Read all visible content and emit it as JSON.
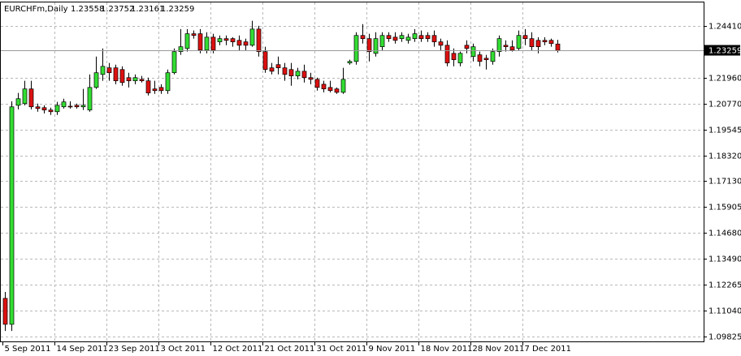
{
  "chart_data": {
    "type": "candlestick",
    "title": "EURCHFm,Daily",
    "up_color": "#33dd33",
    "down_color": "#dd1111",
    "grid": true,
    "ylim": [
      1.0956,
      1.2551
    ],
    "yticks": [
      1.09825,
      {
        "value": 1.1104,
        "label": "1.11040"
      },
      1.12265,
      {
        "value": 1.1349,
        "label": "1.13490"
      },
      {
        "value": 1.1468,
        "label": "1.14680"
      },
      1.15905,
      {
        "value": 1.1713,
        "label": "1.17130"
      },
      {
        "value": 1.1832,
        "label": "1.18320"
      },
      1.19545,
      {
        "value": 1.2077,
        "label": "1.20770"
      },
      {
        "value": 1.2196,
        "label": "1.21960"
      },
      {
        "value": 1.2441,
        "label": "1.24410"
      }
    ],
    "categories": [
      "5 Sep 2011",
      null,
      null,
      null,
      null,
      null,
      null,
      null,
      "14 Sep 2011",
      null,
      null,
      null,
      null,
      null,
      null,
      null,
      "23 Sep 2011",
      null,
      null,
      null,
      null,
      null,
      null,
      null,
      "3 Oct 2011",
      null,
      null,
      null,
      null,
      null,
      null,
      null,
      "12 Oct 2011",
      null,
      null,
      null,
      null,
      null,
      null,
      null,
      "21 Oct 2011",
      null,
      null,
      null,
      null,
      null,
      null,
      null,
      "31 Oct 2011",
      null,
      null,
      null,
      null,
      null,
      null,
      null,
      "9 Nov 2011",
      null,
      null,
      null,
      null,
      null,
      null,
      null,
      "18 Nov 2011",
      null,
      null,
      null,
      null,
      null,
      null,
      null,
      "28 Nov 2011",
      null,
      null,
      null,
      null,
      null,
      null,
      null,
      "7 Dec 2011",
      null,
      null,
      null,
      null,
      null
    ],
    "open": [
      1.1162,
      1.104,
      1.2068,
      1.2076,
      1.2145,
      1.2061,
      1.2057,
      1.2046,
      1.2038,
      1.2061,
      1.2064,
      1.2068,
      1.2061,
      1.2046,
      1.2152,
      1.2213,
      1.2244,
      1.2244,
      1.2236,
      1.2198,
      1.2183,
      1.219,
      1.2183,
      1.2145,
      1.2152,
      1.2137,
      1.2221,
      1.232,
      1.2335,
      1.2404,
      1.2404,
      1.2327,
      1.2388,
      1.2366,
      1.2381,
      1.2381,
      1.2373,
      1.2366,
      1.235,
      1.2426,
      1.232,
      1.2244,
      1.2259,
      1.2244,
      1.2236,
      1.2206,
      1.2228,
      1.2198,
      1.219,
      1.2167,
      1.2152,
      1.2145,
      1.2129,
      1.2267,
      1.2274,
      1.2396,
      1.2381,
      1.2312,
      1.2343,
      1.2396,
      1.2388,
      1.2381,
      1.2373,
      1.2381,
      1.2396,
      1.2396,
      1.2396,
      1.2366,
      1.235,
      1.2312,
      1.2267,
      1.235,
      1.2297,
      1.2305,
      1.2289,
      1.2274,
      1.232,
      1.235,
      1.2343,
      1.2335,
      1.2396,
      1.2381,
      1.2373,
      1.2373,
      1.2373,
      1.23558
    ],
    "high": [
      1.1192,
      1.2087,
      1.2126,
      1.2183,
      1.2183,
      1.2076,
      1.2068,
      1.2057,
      1.2084,
      1.2099,
      1.2087,
      1.2076,
      1.2145,
      1.2213,
      1.2297,
      1.2335,
      1.2267,
      1.2259,
      1.2251,
      1.2221,
      1.2213,
      1.2206,
      1.2198,
      1.2183,
      1.2167,
      1.2236,
      1.2335,
      1.2426,
      1.2426,
      1.2419,
      1.2426,
      1.2411,
      1.2404,
      1.2396,
      1.2396,
      1.2388,
      1.2396,
      1.2381,
      1.2465,
      1.2441,
      1.2343,
      1.2267,
      1.2297,
      1.2267,
      1.2267,
      1.2244,
      1.2259,
      1.2221,
      1.2198,
      1.2183,
      1.2183,
      1.2152,
      1.2244,
      1.2282,
      1.2411,
      1.2449,
      1.2404,
      1.2411,
      1.2411,
      1.2411,
      1.2411,
      1.2411,
      1.2404,
      1.2426,
      1.2419,
      1.2411,
      1.2419,
      1.2381,
      1.2373,
      1.2335,
      1.232,
      1.2373,
      1.2358,
      1.232,
      1.2305,
      1.2335,
      1.2396,
      1.2373,
      1.2373,
      1.2419,
      1.2426,
      1.2411,
      1.2388,
      1.2388,
      1.2381,
      1.23752
    ],
    "low": [
      1.1009,
      1.1009,
      1.2049,
      1.2068,
      1.2049,
      1.2038,
      1.203,
      1.2023,
      1.2023,
      1.2053,
      1.2053,
      1.2053,
      1.2046,
      1.2038,
      1.2145,
      1.2183,
      1.2183,
      1.2167,
      1.216,
      1.2152,
      1.2167,
      1.2175,
      1.2114,
      1.2122,
      1.2122,
      1.2122,
      1.2213,
      1.2305,
      1.232,
      1.2381,
      1.2312,
      1.2312,
      1.2312,
      1.235,
      1.235,
      1.2343,
      1.2327,
      1.2327,
      1.2343,
      1.2297,
      1.2221,
      1.2213,
      1.2213,
      1.2183,
      1.216,
      1.219,
      1.2175,
      1.2167,
      1.2137,
      1.2129,
      1.2129,
      1.2122,
      1.2122,
      1.2259,
      1.2259,
      1.2358,
      1.2274,
      1.2297,
      1.2327,
      1.2366,
      1.2358,
      1.2366,
      1.2358,
      1.2366,
      1.2366,
      1.2366,
      1.2343,
      1.2327,
      1.2251,
      1.2251,
      1.2251,
      1.2312,
      1.2274,
      1.2251,
      1.2236,
      1.2259,
      1.2297,
      1.232,
      1.232,
      1.2327,
      1.235,
      1.2327,
      1.2312,
      1.235,
      1.2343,
      1.23161
    ],
    "close": [
      1.104,
      1.2061,
      1.2099,
      1.2145,
      1.2061,
      1.2053,
      1.2046,
      1.2038,
      1.2068,
      1.2084,
      1.2061,
      1.2061,
      1.2068,
      1.2152,
      1.2221,
      1.2251,
      1.2221,
      1.2183,
      1.2175,
      1.2183,
      1.2198,
      1.2183,
      1.2126,
      1.2137,
      1.2137,
      1.2221,
      1.232,
      1.2343,
      1.2404,
      1.2396,
      1.2327,
      1.2388,
      1.2327,
      1.2381,
      1.2373,
      1.2366,
      1.235,
      1.235,
      1.2426,
      1.232,
      1.2236,
      1.2228,
      1.2244,
      1.2213,
      1.2206,
      1.2228,
      1.2198,
      1.219,
      1.2152,
      1.2145,
      1.2137,
      1.2129,
      1.219,
      1.2274,
      1.2396,
      1.2381,
      1.232,
      1.2381,
      1.2396,
      1.2381,
      1.2373,
      1.2396,
      1.2388,
      1.2404,
      1.2381,
      1.2381,
      1.2366,
      1.235,
      1.2267,
      1.2282,
      1.2312,
      1.2335,
      1.2343,
      1.2274,
      1.2282,
      1.232,
      1.2381,
      1.2343,
      1.2327,
      1.2396,
      1.2381,
      1.2343,
      1.2343,
      1.2366,
      1.2358,
      1.23259
    ]
  }
}
